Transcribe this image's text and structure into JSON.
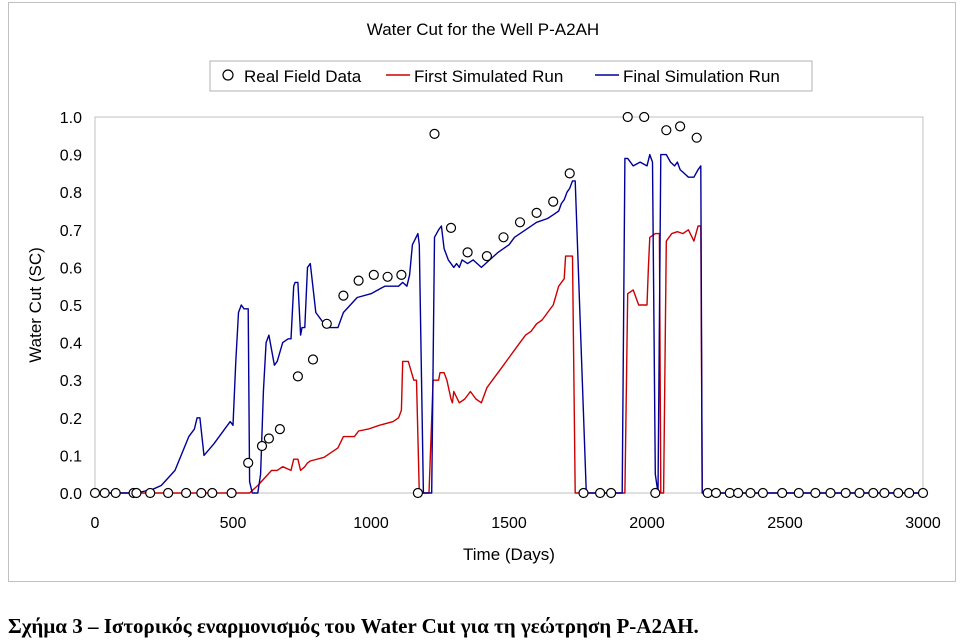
{
  "caption": "Σχήμα 3 – Ιστορικός εναρμονισμός του Water Cut για τη γεώτρηση P-A2AH.",
  "chart_data": {
    "type": "line",
    "title": "Water Cut for the Well P-A2AH",
    "xlabel": "Time (Days)",
    "ylabel": "Water Cut (SC)",
    "xlim": [
      0,
      3000
    ],
    "ylim": [
      0.0,
      1.0
    ],
    "x_ticks": [
      "0",
      "500",
      "1000",
      "1500",
      "2000",
      "2500",
      "3000"
    ],
    "y_ticks": [
      "0.0",
      "0.1",
      "0.2",
      "0.3",
      "0.4",
      "0.5",
      "0.6",
      "0.7",
      "0.8",
      "0.9",
      "1.0"
    ],
    "grid": false,
    "legend_position": "top",
    "series": [
      {
        "name": "Real Field Data",
        "style": "markers",
        "color": "#000000",
        "x": [
          0,
          35,
          75,
          140,
          150,
          200,
          265,
          330,
          385,
          425,
          495,
          555,
          605,
          630,
          670,
          735,
          790,
          840,
          900,
          955,
          1010,
          1060,
          1110,
          1170,
          1230,
          1290,
          1350,
          1420,
          1480,
          1540,
          1600,
          1660,
          1720,
          1770,
          1830,
          1870,
          1930,
          1990,
          2030,
          2070,
          2120,
          2180,
          2220,
          2250,
          2300,
          2330,
          2375,
          2420,
          2490,
          2550,
          2610,
          2665,
          2720,
          2770,
          2820,
          2860,
          2910,
          2950,
          3000
        ],
        "y": [
          0,
          0,
          0,
          0,
          0,
          0,
          0,
          0,
          0,
          0,
          0,
          0.08,
          0.125,
          0.145,
          0.17,
          0.31,
          0.355,
          0.45,
          0.525,
          0.565,
          0.58,
          0.575,
          0.58,
          0,
          0.955,
          0.705,
          0.64,
          0.63,
          0.68,
          0.72,
          0.745,
          0.775,
          0.85,
          0,
          0,
          0,
          1.0,
          1.0,
          0,
          0.965,
          0.975,
          0.945,
          0,
          0,
          0,
          0,
          0,
          0,
          0,
          0,
          0,
          0,
          0,
          0,
          0,
          0,
          0,
          0,
          0
        ]
      },
      {
        "name": "First Simulated Run",
        "style": "line",
        "color": "#cc0000",
        "x": [
          0,
          560,
          575,
          590,
          640,
          660,
          680,
          710,
          720,
          735,
          745,
          760,
          770,
          780,
          830,
          880,
          900,
          940,
          955,
          990,
          1030,
          1080,
          1100,
          1110,
          1115,
          1135,
          1155,
          1165,
          1175,
          1190,
          1195,
          1210,
          1225,
          1245,
          1250,
          1265,
          1275,
          1290,
          1295,
          1300,
          1320,
          1340,
          1360,
          1380,
          1400,
          1420,
          1440,
          1460,
          1480,
          1500,
          1520,
          1540,
          1560,
          1580,
          1600,
          1620,
          1640,
          1660,
          1680,
          1700,
          1705,
          1710,
          1720,
          1725,
          1730,
          1740,
          1790,
          1880,
          1920,
          1930,
          1950,
          1970,
          2000,
          2005,
          2010,
          2030,
          2045,
          2050,
          2060,
          2070,
          2090,
          2110,
          2130,
          2150,
          2170,
          2185,
          2195,
          2200,
          3000
        ],
        "y": [
          0,
          0,
          0.01,
          0.02,
          0.06,
          0.06,
          0.07,
          0.06,
          0.09,
          0.09,
          0.06,
          0.07,
          0.08,
          0.085,
          0.095,
          0.12,
          0.15,
          0.15,
          0.165,
          0.17,
          0.18,
          0.19,
          0.2,
          0.22,
          0.35,
          0.35,
          0.3,
          0.3,
          0,
          0,
          0,
          0,
          0.3,
          0.3,
          0.32,
          0.32,
          0.3,
          0.25,
          0.24,
          0.27,
          0.24,
          0.25,
          0.27,
          0.25,
          0.24,
          0.28,
          0.3,
          0.32,
          0.34,
          0.36,
          0.38,
          0.4,
          0.42,
          0.43,
          0.45,
          0.46,
          0.48,
          0.5,
          0.55,
          0.57,
          0.63,
          0.63,
          0.63,
          0.63,
          0.63,
          0,
          0,
          0,
          0,
          0.53,
          0.54,
          0.5,
          0.5,
          0.6,
          0.68,
          0.69,
          0.69,
          0,
          0,
          0.67,
          0.69,
          0.695,
          0.69,
          0.7,
          0.67,
          0.71,
          0.71,
          0,
          0
        ]
      },
      {
        "name": "Final Simulation Run",
        "style": "line",
        "color": "#000099",
        "x": [
          0,
          150,
          210,
          240,
          265,
          290,
          340,
          360,
          370,
          380,
          395,
          430,
          490,
          500,
          510,
          520,
          530,
          540,
          550,
          555,
          560,
          570,
          590,
          600,
          610,
          620,
          630,
          650,
          660,
          680,
          700,
          710,
          720,
          725,
          735,
          745,
          750,
          760,
          770,
          780,
          800,
          830,
          850,
          880,
          900,
          950,
          1000,
          1050,
          1080,
          1100,
          1115,
          1130,
          1140,
          1150,
          1170,
          1175,
          1190,
          1200,
          1205,
          1210,
          1215,
          1220,
          1230,
          1245,
          1255,
          1265,
          1280,
          1300,
          1310,
          1320,
          1330,
          1350,
          1370,
          1400,
          1430,
          1460,
          1480,
          1500,
          1520,
          1560,
          1600,
          1640,
          1660,
          1680,
          1690,
          1700,
          1710,
          1720,
          1730,
          1740,
          1780,
          1850,
          1910,
          1920,
          1930,
          1950,
          1975,
          2000,
          2010,
          2020,
          2030,
          2040,
          2050,
          2070,
          2085,
          2100,
          2110,
          2120,
          2135,
          2150,
          2170,
          2185,
          2195,
          2200,
          3000
        ],
        "y": [
          0,
          0,
          0.01,
          0.02,
          0.04,
          0.06,
          0.15,
          0.17,
          0.2,
          0.2,
          0.1,
          0.13,
          0.19,
          0.18,
          0.35,
          0.48,
          0.5,
          0.49,
          0.49,
          0.49,
          0.03,
          0,
          0,
          0.05,
          0.27,
          0.4,
          0.42,
          0.34,
          0.35,
          0.4,
          0.41,
          0.41,
          0.55,
          0.56,
          0.56,
          0.42,
          0.44,
          0.44,
          0.6,
          0.61,
          0.48,
          0.45,
          0.44,
          0.44,
          0.48,
          0.52,
          0.53,
          0.55,
          0.55,
          0.55,
          0.56,
          0.55,
          0.58,
          0.66,
          0.69,
          0.66,
          0,
          0,
          0,
          0,
          0,
          0,
          0.68,
          0.7,
          0.71,
          0.65,
          0.62,
          0.6,
          0.61,
          0.6,
          0.62,
          0.61,
          0.62,
          0.6,
          0.62,
          0.64,
          0.65,
          0.66,
          0.68,
          0.7,
          0.72,
          0.73,
          0.74,
          0.75,
          0.77,
          0.78,
          0.8,
          0.81,
          0.83,
          0.83,
          0,
          0,
          0,
          0.89,
          0.89,
          0.87,
          0.88,
          0.87,
          0.9,
          0.88,
          0.05,
          0,
          0.9,
          0.9,
          0.88,
          0.87,
          0.88,
          0.86,
          0.85,
          0.84,
          0.84,
          0.86,
          0.87,
          0,
          0
        ]
      }
    ]
  }
}
